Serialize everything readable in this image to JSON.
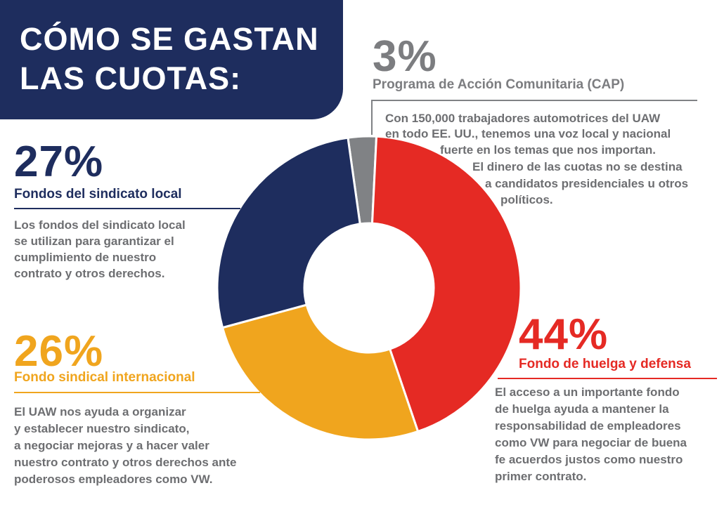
{
  "title": {
    "line1": "CÓMO SE GASTAN",
    "line2": "LAS CUOTAS:"
  },
  "chart_data": {
    "type": "pie",
    "title": "CÓMO SE GASTAN LAS CUOTAS:",
    "slices": [
      {
        "label": "Programa de Acción Comunitaria (CAP)",
        "value": 3,
        "percent_label": "3%",
        "color": "#808285"
      },
      {
        "label": "Fondo de huelga y defensa",
        "value": 44,
        "percent_label": "44%",
        "color": "#e52a24"
      },
      {
        "label": "Fondo sindical internacional",
        "value": 26,
        "percent_label": "26%",
        "color": "#f0a51e"
      },
      {
        "label": "Fondos del sindicato local",
        "value": 27,
        "percent_label": "27%",
        "color": "#1e2d5e"
      }
    ]
  },
  "sections": {
    "cap": {
      "percent": "3%",
      "label": "Programa de Acción Comunitaria (CAP)",
      "lines": [
        "Con 150,000 trabajadores automotrices del UAW",
        "en todo EE. UU., tenemos una voz local y nacional",
        "fuerte en los temas que nos importan.",
        "El dinero de las cuotas no se destina",
        "a candidatos presidenciales u otros",
        "políticos."
      ]
    },
    "local": {
      "percent": "27%",
      "label": "Fondos del sindicato local",
      "lines": [
        "Los fondos del sindicato local",
        "se utilizan para garantizar el",
        "cumplimiento de nuestro",
        "contrato y otros derechos."
      ]
    },
    "international": {
      "percent": "26%",
      "label": "Fondo sindical internacional",
      "lines": [
        "El UAW nos ayuda a organizar",
        "y establecer nuestro sindicato,",
        "a negociar mejoras y a hacer valer",
        "nuestro contrato y otros derechos ante",
        "poderosos empleadores como VW."
      ]
    },
    "strike": {
      "percent": "44%",
      "label": "Fondo de huelga y defensa",
      "lines": [
        "El acceso a un importante fondo",
        "de huelga ayuda a mantener la",
        "responsabilidad de empleadores",
        "como VW para negociar de buena",
        "fe acuerdos justos como nuestro",
        "primer contrato."
      ]
    }
  }
}
